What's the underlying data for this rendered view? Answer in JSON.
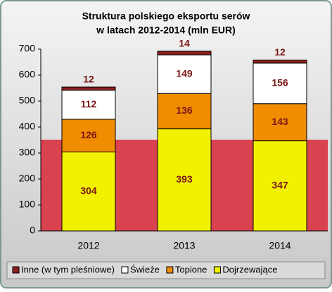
{
  "chart_data": {
    "type": "stacked-bar",
    "title": [
      "Struktura polskiego  eksportu serów",
      "w latach 2012-2014  (mln EUR)"
    ],
    "categories": [
      "2012",
      "2013",
      "2014"
    ],
    "series": [
      {
        "name": "Dojrzewające",
        "color": "#f2f200",
        "values": [
          304,
          393,
          347
        ]
      },
      {
        "name": "Topione",
        "color": "#f08c00",
        "values": [
          126,
          136,
          143
        ]
      },
      {
        "name": "Świeże",
        "color": "#ffffff",
        "values": [
          112,
          149,
          156
        ]
      },
      {
        "name": "Inne (w tym pleśniowe)",
        "color": "#8b1e1e",
        "values": [
          12,
          14,
          12
        ]
      }
    ],
    "ylim": [
      0,
      700
    ],
    "yticks": [
      0,
      100,
      200,
      300,
      400,
      500,
      600,
      700
    ],
    "label_color": "#7a1515"
  }
}
